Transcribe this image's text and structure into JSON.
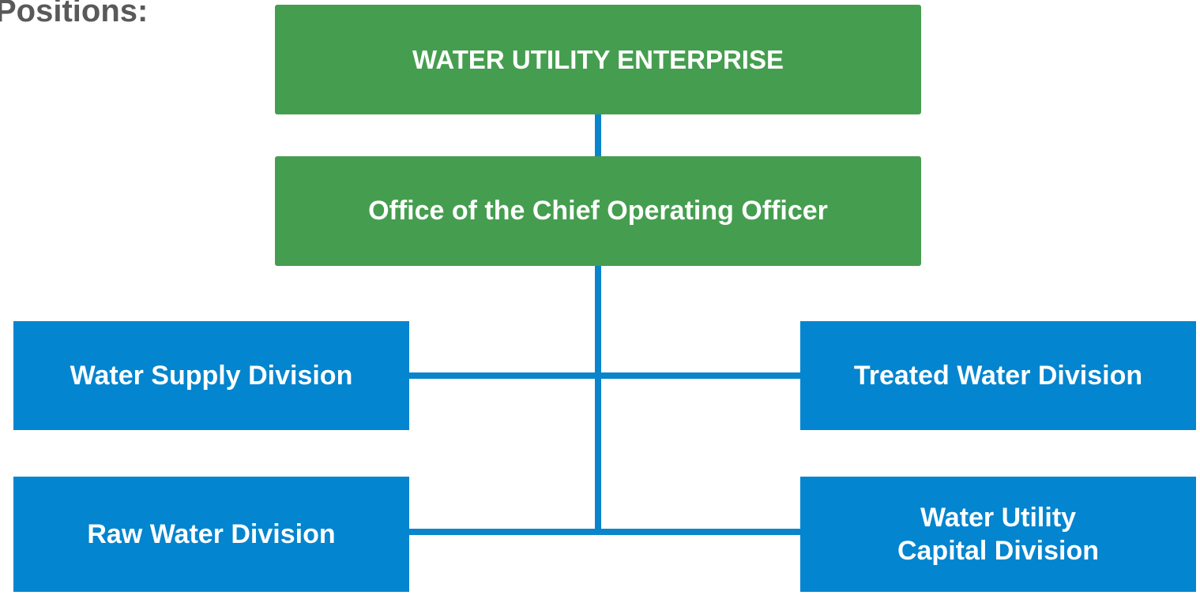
{
  "heading": "Positions:",
  "nodes": [
    {
      "lines": [
        "WATER UTILITY ENTERPRISE"
      ]
    },
    {
      "lines": [
        "Office of the Chief Operating Officer"
      ]
    },
    {
      "lines": [
        "Water Supply Division"
      ]
    },
    {
      "lines": [
        "Treated Water Division"
      ]
    },
    {
      "lines": [
        "Raw Water Division"
      ]
    },
    {
      "lines": [
        "Water Utility",
        "Capital Division"
      ]
    }
  ]
}
